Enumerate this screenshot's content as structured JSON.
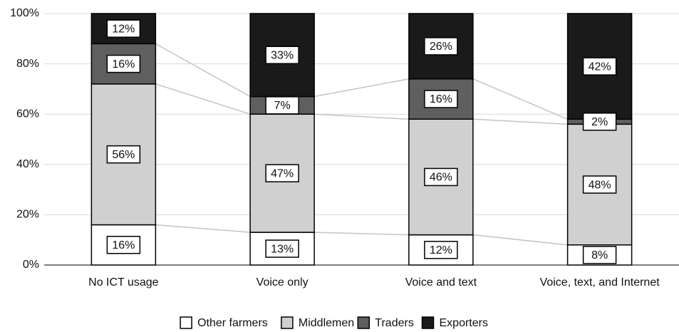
{
  "chart_data": {
    "type": "stacked-bar",
    "categories": [
      "No ICT usage",
      "Voice only",
      "Voice and text",
      "Voice, text, and Internet"
    ],
    "series": [
      {
        "name": "Other farmers",
        "color": "#ffffff",
        "values": [
          16,
          13,
          12,
          8
        ],
        "value_labels": [
          "16%",
          "13%",
          "12%",
          "8%"
        ]
      },
      {
        "name": "Middlemen",
        "color": "#d0d0d0",
        "values": [
          56,
          47,
          46,
          48
        ],
        "value_labels": [
          "56%",
          "47%",
          "46%",
          "48%"
        ]
      },
      {
        "name": "Traders",
        "color": "#5f5f5f",
        "values": [
          16,
          7,
          16,
          2
        ],
        "value_labels": [
          "16%",
          "7%",
          "16%",
          "2%"
        ]
      },
      {
        "name": "Exporters",
        "color": "#1a1a1a",
        "values": [
          12,
          33,
          26,
          42
        ],
        "value_labels": [
          "12%",
          "33%",
          "26%",
          "42%"
        ]
      }
    ],
    "ylim": [
      0,
      100
    ],
    "yticks": [
      {
        "value": 0,
        "label": "0%"
      },
      {
        "value": 20,
        "label": "20%"
      },
      {
        "value": 40,
        "label": "40%"
      },
      {
        "value": 60,
        "label": "60%"
      },
      {
        "value": 80,
        "label": "80%"
      },
      {
        "value": 100,
        "label": "100%"
      }
    ],
    "grid": true,
    "legend": "bottom"
  }
}
